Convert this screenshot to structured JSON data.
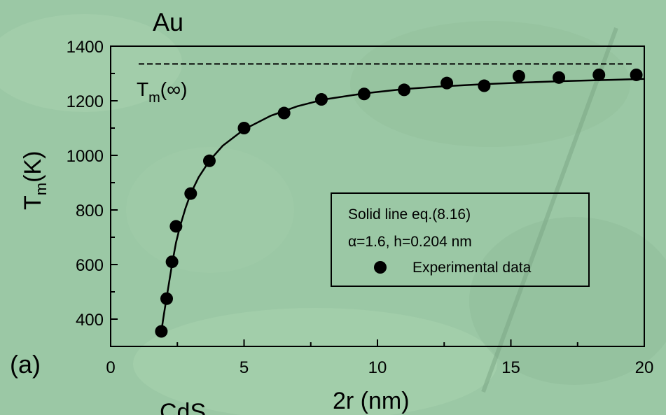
{
  "chart_data": {
    "type": "scatter",
    "title": "Au",
    "panel_label": "(a)",
    "bottom_text": "CdS",
    "xlabel": "2r (nm)",
    "ylabel_main": "T",
    "ylabel_sub": "m",
    "ylabel_unit": "(K)",
    "xlim": [
      0,
      20
    ],
    "ylim": [
      300,
      1400
    ],
    "xticks": [
      0,
      5,
      10,
      15,
      20
    ],
    "yticks": [
      400,
      600,
      800,
      1000,
      1200,
      1400
    ],
    "grid": false,
    "legend_position": "center-right",
    "legend": {
      "line1": "Solid line eq.(8.16)",
      "line2": "α=1.6, h=0.204 nm",
      "marker_label": "Experimental data"
    },
    "asymptote": {
      "label_main": "T",
      "label_sub": "m",
      "label_tail": "(∞)",
      "value": 1335
    },
    "series": [
      {
        "name": "Experimental data",
        "x": [
          1.9,
          2.1,
          2.3,
          2.45,
          3.0,
          3.7,
          5.0,
          6.5,
          7.9,
          9.5,
          11.0,
          12.6,
          14.0,
          15.3,
          16.8,
          18.3,
          19.7
        ],
        "y": [
          355,
          475,
          610,
          740,
          860,
          980,
          1100,
          1155,
          1205,
          1225,
          1240,
          1265,
          1255,
          1290,
          1285,
          1295,
          1295
        ]
      }
    ],
    "fit_curve": {
      "name": "Solid line eq.(8.16)",
      "x": [
        1.9,
        2.0,
        2.1,
        2.2,
        2.3,
        2.45,
        2.6,
        2.8,
        3.0,
        3.3,
        3.7,
        4.2,
        5.0,
        6.0,
        7.0,
        8.0,
        9.5,
        11.0,
        12.5,
        14.0,
        15.5,
        17.0,
        18.5,
        20.0
      ],
      "y": [
        355,
        420,
        480,
        540,
        600,
        680,
        740,
        805,
        860,
        920,
        980,
        1035,
        1095,
        1145,
        1180,
        1205,
        1227,
        1243,
        1253,
        1261,
        1267,
        1272,
        1276,
        1280
      ]
    }
  }
}
